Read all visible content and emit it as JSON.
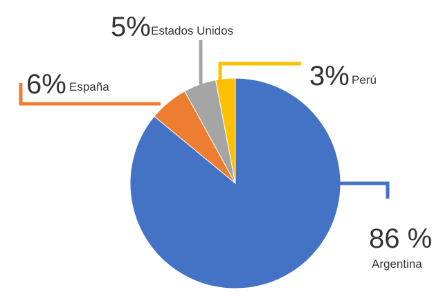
{
  "chart_data": {
    "type": "pie",
    "categories": [
      "Argentina",
      "España",
      "Estados Unidos",
      "Perú"
    ],
    "values": [
      86,
      6,
      5,
      3
    ],
    "value_labels": [
      "86 %",
      "6%",
      "5%",
      "3%"
    ],
    "colors": [
      "#4472c4",
      "#ed7d31",
      "#a5a5a5",
      "#ffc000"
    ]
  }
}
